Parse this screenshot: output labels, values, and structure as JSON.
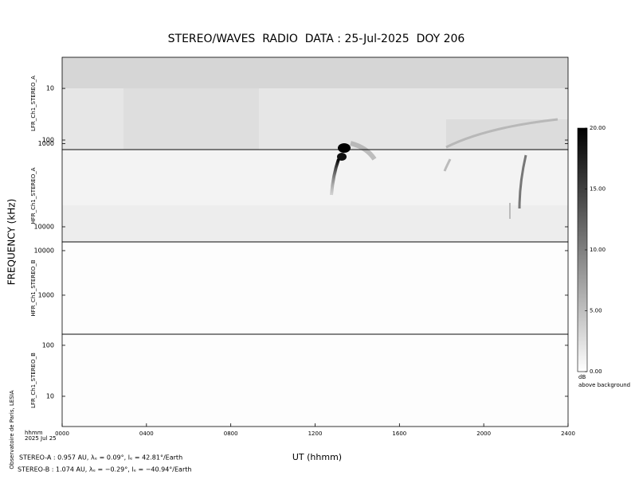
{
  "chart_data": {
    "type": "spectrogram",
    "title": "STEREO/WAVES  RADIO  DATA : 25-Jul-2025  DOY 206",
    "ylabel": "FREQUENCY (kHz)",
    "xlabel": "UT (hhmm)",
    "credit": "Observatoire de Paris, LESIA",
    "x_unit_label": "hhmm",
    "date_label": "2025 Jul 25",
    "xlim": [
      0,
      24
    ],
    "xticks": [
      {
        "value": 0,
        "label": "0000"
      },
      {
        "value": 4,
        "label": "0400"
      },
      {
        "value": 8,
        "label": "0800"
      },
      {
        "value": 12,
        "label": "1200"
      },
      {
        "value": 16,
        "label": "1600"
      },
      {
        "value": 20,
        "label": "2000"
      },
      {
        "value": 24,
        "label": "2400"
      }
    ],
    "log_y": true,
    "panels": [
      {
        "name": "LFR_Ch1_STEREO_A",
        "ylim": [
          2.5,
          153
        ],
        "yticks": [
          10,
          100
        ]
      },
      {
        "name": "HFR_Ch1_STEREO_A",
        "ylim": [
          1180,
          15200
        ],
        "yticks": [
          1000,
          10000
        ]
      },
      {
        "name": "HFR_Ch1_STEREO_B",
        "ylim": [
          15700,
          133
        ],
        "yticks": [
          10000,
          1000
        ]
      },
      {
        "name": "LFR_Ch1_STEREO_B",
        "ylim": [
          165,
          2.55
        ],
        "yticks": [
          100,
          10
        ]
      }
    ],
    "colorbar": {
      "clim": [
        0,
        20
      ],
      "ticks": [
        {
          "value": 20,
          "label": "20.00"
        },
        {
          "value": 15,
          "label": "15.00"
        },
        {
          "value": 10,
          "label": "10.00"
        },
        {
          "value": 5,
          "label": "5.00"
        },
        {
          "value": 0,
          "label": "0.00"
        }
      ],
      "unit": "dB",
      "caption": "above background"
    },
    "footer": [
      "STEREO-A : 0.957 AU, λₑ = 0.09°, lₑ = 42.81°/Earth",
      "STEREO-B : 1.074 AU, λₑ = −0.29°, lₑ = −40.94°/Earth"
    ]
  }
}
